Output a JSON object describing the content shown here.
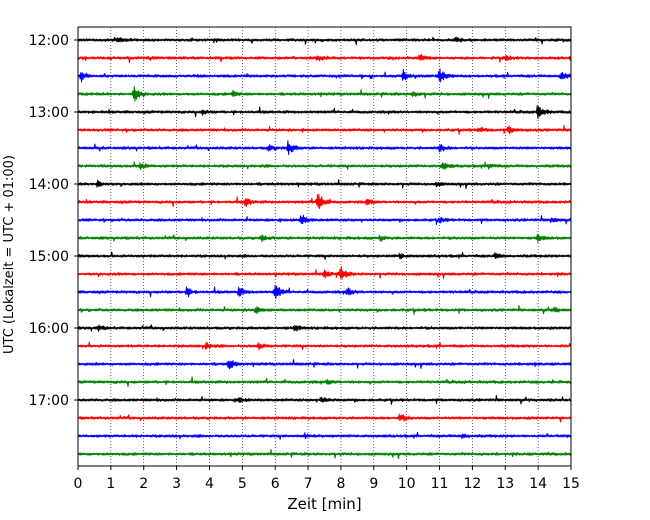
{
  "chart_data": {
    "type": "line",
    "title": "",
    "xlabel": "Zeit  [min]",
    "ylabel": "UTC (Lokalzeit = UTC + 01:00)",
    "xlim": [
      0,
      15
    ],
    "x_ticks": [
      "0",
      "1",
      "2",
      "3",
      "4",
      "5",
      "6",
      "7",
      "8",
      "9",
      "10",
      "11",
      "12",
      "13",
      "14",
      "15"
    ],
    "y_tick_labels": [
      "12:00",
      "13:00",
      "14:00",
      "15:00",
      "16:00",
      "17:00"
    ],
    "trace_interval_min": 15,
    "grid_x": "dotted vertical lines at each minute",
    "series_colors": [
      "#000000",
      "#ff0000",
      "#0000ff",
      "#008000"
    ],
    "traces": [
      {
        "start": "12:00",
        "events": [
          {
            "t": 1.2,
            "amp": 0.3
          },
          {
            "t": 11.5,
            "amp": 0.25
          }
        ]
      },
      {
        "start": "12:15",
        "events": [
          {
            "t": 7.3,
            "amp": 0.3
          },
          {
            "t": 10.4,
            "amp": 0.35
          },
          {
            "t": 13.0,
            "amp": 0.3
          },
          {
            "t": 15.0,
            "amp": 0.35
          }
        ]
      },
      {
        "start": "12:30",
        "events": [
          {
            "t": 0.1,
            "amp": 0.6
          },
          {
            "t": 9.9,
            "amp": 0.6
          },
          {
            "t": 11.0,
            "amp": 0.9
          },
          {
            "t": 14.7,
            "amp": 0.6
          }
        ]
      },
      {
        "start": "12:45",
        "events": [
          {
            "t": 1.7,
            "amp": 1.0
          },
          {
            "t": 4.7,
            "amp": 0.3
          },
          {
            "t": 10.2,
            "amp": 0.3
          }
        ]
      },
      {
        "start": "13:00",
        "events": [
          {
            "t": 3.8,
            "amp": 0.25
          },
          {
            "t": 14.0,
            "amp": 0.9
          }
        ]
      },
      {
        "start": "13:15",
        "events": [
          {
            "t": 12.2,
            "amp": 0.3
          },
          {
            "t": 13.1,
            "amp": 0.45
          }
        ]
      },
      {
        "start": "13:30",
        "events": [
          {
            "t": 6.4,
            "amp": 0.8
          },
          {
            "t": 11.0,
            "amp": 0.45
          },
          {
            "t": 5.8,
            "amp": 0.35
          }
        ]
      },
      {
        "start": "13:45",
        "events": [
          {
            "t": 1.9,
            "amp": 0.4
          },
          {
            "t": 11.1,
            "amp": 0.45
          },
          {
            "t": 12.5,
            "amp": 0.3
          }
        ]
      },
      {
        "start": "14:00",
        "events": [
          {
            "t": 0.6,
            "amp": 0.4
          },
          {
            "t": 10.9,
            "amp": 0.2
          }
        ]
      },
      {
        "start": "14:15",
        "events": [
          {
            "t": 5.1,
            "amp": 0.5
          },
          {
            "t": 7.3,
            "amp": 1.3
          },
          {
            "t": 8.8,
            "amp": 0.3
          }
        ]
      },
      {
        "start": "14:30",
        "events": [
          {
            "t": 6.8,
            "amp": 0.6
          },
          {
            "t": 11.0,
            "amp": 0.3
          },
          {
            "t": 14.4,
            "amp": 0.25
          }
        ]
      },
      {
        "start": "14:45",
        "events": [
          {
            "t": 5.6,
            "amp": 0.3
          },
          {
            "t": 9.2,
            "amp": 0.3
          },
          {
            "t": 14.0,
            "amp": 0.4
          }
        ]
      },
      {
        "start": "15:00",
        "events": [
          {
            "t": 9.8,
            "amp": 0.3
          },
          {
            "t": 12.7,
            "amp": 0.3
          }
        ]
      },
      {
        "start": "15:15",
        "events": [
          {
            "t": 7.5,
            "amp": 0.4
          },
          {
            "t": 8.0,
            "amp": 0.8
          }
        ]
      },
      {
        "start": "15:30",
        "events": [
          {
            "t": 3.3,
            "amp": 0.5
          },
          {
            "t": 4.9,
            "amp": 0.5
          },
          {
            "t": 6.0,
            "amp": 1.0
          },
          {
            "t": 8.2,
            "amp": 0.4
          }
        ]
      },
      {
        "start": "15:45",
        "events": [
          {
            "t": 5.4,
            "amp": 0.3
          },
          {
            "t": 14.5,
            "amp": 0.25
          }
        ]
      },
      {
        "start": "16:00",
        "events": [
          {
            "t": 0.6,
            "amp": 0.3
          },
          {
            "t": 6.6,
            "amp": 0.35
          }
        ]
      },
      {
        "start": "16:15",
        "events": [
          {
            "t": 3.9,
            "amp": 0.35
          },
          {
            "t": 5.5,
            "amp": 0.35
          }
        ]
      },
      {
        "start": "16:30",
        "events": [
          {
            "t": 4.6,
            "amp": 0.7
          }
        ]
      },
      {
        "start": "16:45",
        "events": [
          {
            "t": 7.6,
            "amp": 0.2
          }
        ]
      },
      {
        "start": "17:00",
        "events": [
          {
            "t": 7.4,
            "amp": 0.35
          },
          {
            "t": 4.9,
            "amp": 0.25
          }
        ]
      },
      {
        "start": "17:15",
        "events": [
          {
            "t": 9.8,
            "amp": 0.5
          }
        ]
      },
      {
        "start": "17:30",
        "events": [
          {
            "t": 6.9,
            "amp": 0.25
          },
          {
            "t": 11.7,
            "amp": 0.25
          }
        ]
      },
      {
        "start": "17:45",
        "events": []
      }
    ]
  }
}
